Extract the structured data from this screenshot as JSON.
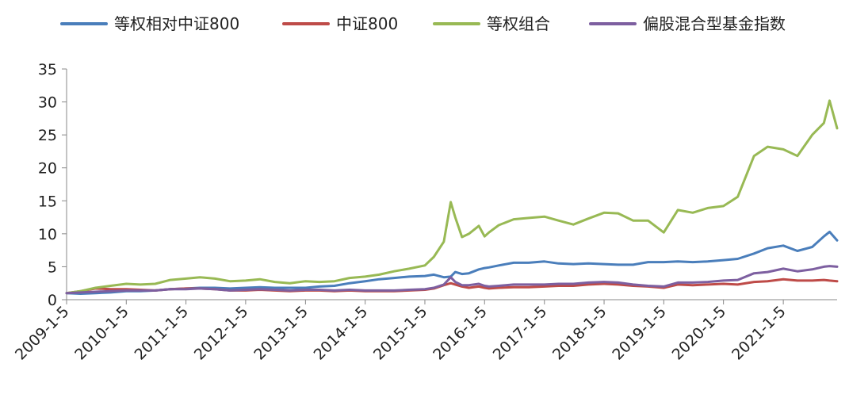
{
  "chart_data": {
    "type": "line",
    "title": "",
    "xlabel": "",
    "ylabel": "",
    "ylim": [
      0,
      35
    ],
    "yticks": [
      0,
      5,
      10,
      15,
      20,
      25,
      30,
      35
    ],
    "x_range": [
      "2009-01-05",
      "2021-11-30"
    ],
    "x_tick_labels": [
      "2009-1-5",
      "2010-1-5",
      "2011-1-5",
      "2012-1-5",
      "2013-1-5",
      "2014-1-5",
      "2015-1-5",
      "2016-1-5",
      "2017-1-5",
      "2018-1-5",
      "2019-1-5",
      "2020-1-5",
      "2021-1-5"
    ],
    "grid": false,
    "legend_position": "top",
    "x": [
      "2009-01-05",
      "2009-04-01",
      "2009-07-01",
      "2009-10-01",
      "2010-01-05",
      "2010-04-01",
      "2010-07-01",
      "2010-10-01",
      "2011-01-05",
      "2011-04-01",
      "2011-07-01",
      "2011-10-01",
      "2012-01-05",
      "2012-04-01",
      "2012-07-01",
      "2012-10-01",
      "2013-01-05",
      "2013-04-01",
      "2013-07-01",
      "2013-10-01",
      "2014-01-05",
      "2014-04-01",
      "2014-07-01",
      "2014-10-01",
      "2015-01-05",
      "2015-03-01",
      "2015-05-01",
      "2015-06-12",
      "2015-07-10",
      "2015-08-20",
      "2015-10-01",
      "2015-12-01",
      "2016-01-05",
      "2016-02-01",
      "2016-04-01",
      "2016-07-01",
      "2016-10-01",
      "2017-01-05",
      "2017-04-01",
      "2017-07-01",
      "2017-10-01",
      "2018-01-05",
      "2018-04-01",
      "2018-07-01",
      "2018-10-01",
      "2019-01-05",
      "2019-04-01",
      "2019-07-01",
      "2019-10-01",
      "2020-01-05",
      "2020-04-01",
      "2020-07-10",
      "2020-10-01",
      "2021-01-05",
      "2021-04-01",
      "2021-07-01",
      "2021-09-10",
      "2021-10-15",
      "2021-11-30"
    ],
    "series": [
      {
        "name": "等权相对中证800",
        "color": "#4a7ebb",
        "values": [
          1.0,
          0.9,
          1.0,
          1.1,
          1.3,
          1.3,
          1.4,
          1.6,
          1.7,
          1.8,
          1.8,
          1.7,
          1.8,
          1.9,
          1.8,
          1.8,
          1.8,
          2.0,
          2.1,
          2.5,
          2.8,
          3.1,
          3.3,
          3.5,
          3.6,
          3.8,
          3.4,
          3.5,
          4.2,
          3.9,
          4.0,
          4.6,
          4.8,
          4.9,
          5.2,
          5.6,
          5.6,
          5.8,
          5.5,
          5.4,
          5.5,
          5.4,
          5.3,
          5.3,
          5.7,
          5.7,
          5.8,
          5.7,
          5.8,
          6.0,
          6.2,
          7.0,
          7.8,
          8.2,
          7.4,
          8.0,
          9.6,
          10.3,
          9.0
        ]
      },
      {
        "name": "中证800",
        "color": "#be4b48",
        "values": [
          1.0,
          1.3,
          1.7,
          1.6,
          1.6,
          1.5,
          1.4,
          1.6,
          1.7,
          1.7,
          1.6,
          1.4,
          1.4,
          1.5,
          1.4,
          1.3,
          1.4,
          1.4,
          1.3,
          1.4,
          1.3,
          1.3,
          1.3,
          1.4,
          1.5,
          1.7,
          2.2,
          2.5,
          2.3,
          2.0,
          1.8,
          2.0,
          1.8,
          1.7,
          1.8,
          1.9,
          1.9,
          2.0,
          2.1,
          2.1,
          2.3,
          2.4,
          2.3,
          2.1,
          2.0,
          1.8,
          2.3,
          2.2,
          2.3,
          2.4,
          2.3,
          2.7,
          2.8,
          3.1,
          2.9,
          2.9,
          3.0,
          2.9,
          2.8
        ]
      },
      {
        "name": "等权组合",
        "color": "#98b954",
        "values": [
          1.0,
          1.3,
          1.8,
          2.1,
          2.4,
          2.3,
          2.4,
          3.0,
          3.2,
          3.4,
          3.2,
          2.8,
          2.9,
          3.1,
          2.7,
          2.5,
          2.8,
          2.7,
          2.8,
          3.3,
          3.5,
          3.8,
          4.3,
          4.7,
          5.2,
          6.5,
          8.8,
          14.8,
          12.5,
          9.5,
          10.0,
          11.2,
          9.6,
          10.2,
          11.3,
          12.2,
          12.4,
          12.6,
          12.0,
          11.4,
          12.3,
          13.2,
          13.1,
          12.0,
          12.0,
          10.2,
          13.6,
          13.2,
          13.9,
          14.2,
          15.6,
          21.8,
          23.2,
          22.8,
          21.8,
          25.0,
          26.8,
          30.2,
          26.0
        ]
      },
      {
        "name": "偏股混合型基金指数",
        "color": "#7d5fa0",
        "values": [
          1.0,
          1.1,
          1.2,
          1.3,
          1.4,
          1.4,
          1.4,
          1.6,
          1.6,
          1.7,
          1.6,
          1.4,
          1.5,
          1.6,
          1.5,
          1.4,
          1.5,
          1.5,
          1.4,
          1.5,
          1.4,
          1.4,
          1.4,
          1.5,
          1.6,
          1.8,
          2.3,
          3.4,
          2.7,
          2.2,
          2.2,
          2.4,
          2.1,
          2.0,
          2.1,
          2.3,
          2.3,
          2.3,
          2.4,
          2.4,
          2.6,
          2.7,
          2.6,
          2.3,
          2.1,
          2.0,
          2.6,
          2.6,
          2.7,
          2.9,
          3.0,
          4.0,
          4.2,
          4.7,
          4.3,
          4.6,
          5.0,
          5.1,
          5.0
        ]
      }
    ]
  }
}
